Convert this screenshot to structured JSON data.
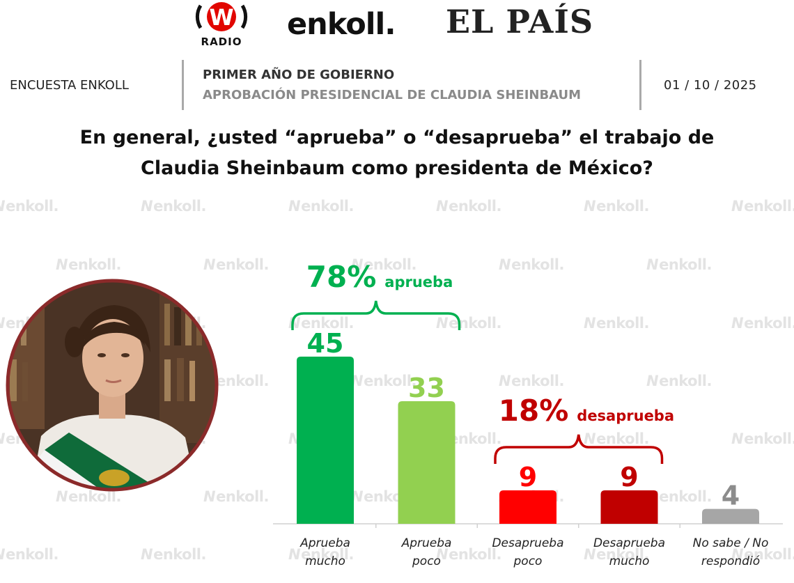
{
  "logos": {
    "wradio_letter": "W",
    "wradio_label": "RADIO",
    "enkoll": "enkoll.",
    "elpais": "EL PAÍS"
  },
  "header": {
    "left": "ENCUESTA ENKOLL",
    "title": "PRIMER AÑO DE GOBIERNO",
    "subtitle": "APROBACIÓN PRESIDENCIAL DE CLAUDIA SHEINBAUM",
    "date": "01 / 10 / 2025"
  },
  "question": {
    "line1": "En general, ¿usted “aprueba” o “desaprueba” el trabajo de",
    "line2": "Claudia Sheinbaum como presidenta de México?"
  },
  "watermark": {
    "text": "enkoll."
  },
  "chart_data": {
    "type": "bar",
    "categories": [
      "Aprueba mucho",
      "Aprueba poco",
      "Desaprueba poco",
      "Desaprueba mucho",
      "No sabe / No respondió"
    ],
    "category_lines": [
      [
        "Aprueba",
        "mucho"
      ],
      [
        "Aprueba",
        "poco"
      ],
      [
        "Desaprueba",
        "poco"
      ],
      [
        "Desaprueba",
        "mucho"
      ],
      [
        "No sabe / No",
        "respondió"
      ]
    ],
    "values": [
      45,
      33,
      9,
      9,
      4
    ],
    "colors": [
      "#00b050",
      "#92d050",
      "#ff0000",
      "#c00000",
      "#a6a6a6"
    ],
    "label_colors": [
      "#00b050",
      "#92d050",
      "#ff0000",
      "#c00000",
      "#8c8c8c"
    ],
    "groups": [
      {
        "value": "78%",
        "label": "aprueba",
        "color": "#00b050",
        "members": [
          0,
          1
        ]
      },
      {
        "value": "18%",
        "label": "desaprueba",
        "color": "#c00000",
        "members": [
          2,
          3
        ]
      }
    ],
    "ylim": [
      0,
      45
    ]
  }
}
